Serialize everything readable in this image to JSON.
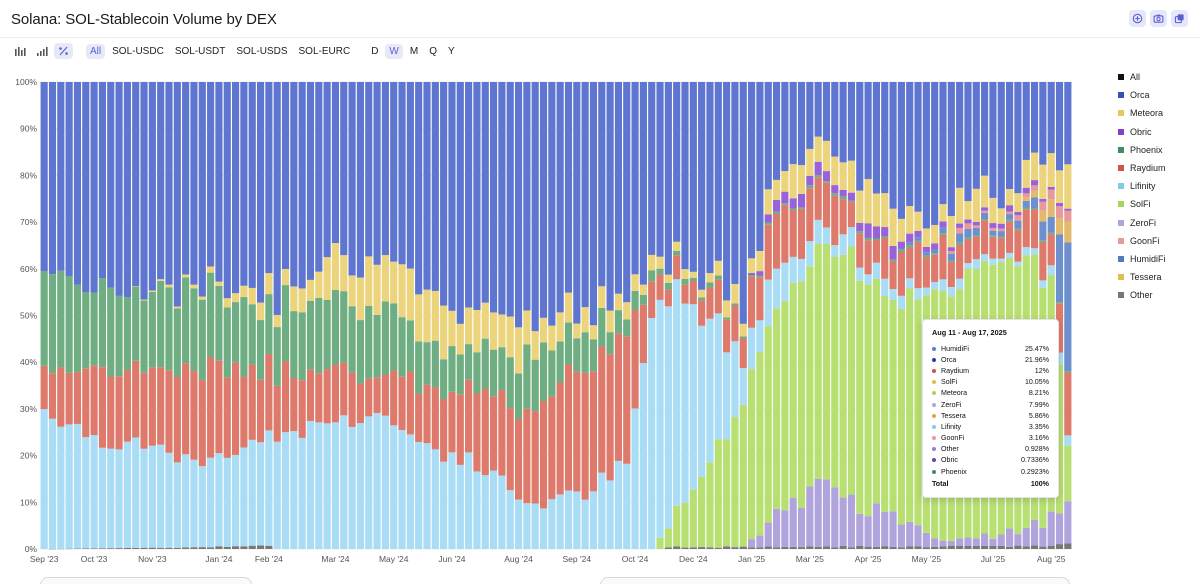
{
  "title": "Solana: SOL-Stablecoin Volume by DEX",
  "header_icons": [
    "add-icon",
    "camera-icon",
    "share-icon"
  ],
  "toolbar": {
    "chart_type_icons": [
      "bar-chart-icon",
      "signal-bars-icon",
      "percent-icon"
    ],
    "pairs": [
      "All",
      "SOL-USDC",
      "SOL-USDT",
      "SOL-USDS",
      "SOL-EURC"
    ],
    "active_pair": "All",
    "intervals": [
      "D",
      "W",
      "M",
      "Q",
      "Y"
    ],
    "active_interval": "W"
  },
  "legend": [
    {
      "label": "All",
      "color": "#111111"
    },
    {
      "label": "Orca",
      "color": "#3b4fb3"
    },
    {
      "label": "Meteora",
      "color": "#e6c75e"
    },
    {
      "label": "Obric",
      "color": "#8142c9"
    },
    {
      "label": "Phoenix",
      "color": "#3f8c5d"
    },
    {
      "label": "Raydium",
      "color": "#cf5349"
    },
    {
      "label": "Lifinity",
      "color": "#86c9ef"
    },
    {
      "label": "SolFi",
      "color": "#a8d65a"
    },
    {
      "label": "ZeroFi",
      "color": "#b1a4dd"
    },
    {
      "label": "GoonFi",
      "color": "#e89a9a"
    },
    {
      "label": "HumidiFi",
      "color": "#4f7ec0"
    },
    {
      "label": "Tessera",
      "color": "#dfbf4c"
    },
    {
      "label": "Other",
      "color": "#777777"
    }
  ],
  "tooltip": {
    "title": "Aug 11 - Aug 17, 2025",
    "rows": [
      {
        "name": "HumidiFi",
        "value": "25.47%",
        "color": "#5b7fc4"
      },
      {
        "name": "Orca",
        "value": "21.96%",
        "color": "#2d3f9e"
      },
      {
        "name": "Raydium",
        "value": "12%",
        "color": "#cf5349"
      },
      {
        "name": "SolFi",
        "value": "10.05%",
        "color": "#e0c04a"
      },
      {
        "name": "Meteora",
        "value": "8.21%",
        "color": "#a8d65a"
      },
      {
        "name": "ZeroFi",
        "value": "7.99%",
        "color": "#b1a4dd"
      },
      {
        "name": "Tessera",
        "value": "5.86%",
        "color": "#e3a947"
      },
      {
        "name": "Lifinity",
        "value": "3.35%",
        "color": "#86c9ef"
      },
      {
        "name": "GoonFi",
        "value": "3.16%",
        "color": "#e89a9a"
      },
      {
        "name": "Other",
        "value": "0.928%",
        "color": "#9c7fd0"
      },
      {
        "name": "Obric",
        "value": "0.7336%",
        "color": "#6b3fb8"
      },
      {
        "name": "Phoenix",
        "value": "0.2923%",
        "color": "#3f8c5d"
      }
    ],
    "total_label": "Total",
    "total_value": "100%"
  },
  "chart_data": {
    "type": "bar",
    "stacked": true,
    "normalized": true,
    "title": "Solana: SOL-Stablecoin Volume by DEX",
    "ylim": [
      0,
      100
    ],
    "y_ticks": [
      "0%",
      "10%",
      "20%",
      "30%",
      "40%",
      "50%",
      "60%",
      "70%",
      "80%",
      "90%",
      "100%"
    ],
    "x_tick_labels": [
      "Sep '23",
      "Oct '23",
      "Nov '23",
      "Jan '24",
      "Feb '24",
      "Mar '24",
      "May '24",
      "Jun '24",
      "Aug '24",
      "Sep '24",
      "Oct '24",
      "Dec '24",
      "Jan '25",
      "Mar '25",
      "Apr '25",
      "May '25",
      "Jul '25",
      "Aug '25"
    ],
    "x_tick_positions": [
      0,
      6,
      13,
      21,
      27,
      35,
      42,
      49,
      57,
      64,
      71,
      78,
      85,
      92,
      99,
      106,
      114,
      121
    ],
    "n_weeks": 124,
    "stack_order": [
      "Other",
      "ZeroFi",
      "SolFi",
      "Lifinity",
      "Raydium",
      "Phoenix",
      "HumidiFi",
      "Tessera",
      "GoonFi",
      "Obric",
      "Meteora",
      "Orca"
    ],
    "series_colors": {
      "Other": "#777777",
      "ZeroFi": "#b1a4dd",
      "SolFi": "#b8df72",
      "Lifinity": "#a9dcf5",
      "Raydium": "#de7a6c",
      "Phoenix": "#6fae82",
      "HumidiFi": "#6d8fce",
      "Tessera": "#e3b96a",
      "GoonFi": "#e89a9a",
      "Obric": "#9a62d8",
      "Meteora": "#ecd47c",
      "Orca": "#5e76cf"
    },
    "anchors": {
      "Other": [
        [
          0,
          0
        ],
        [
          27,
          0.6
        ],
        [
          28,
          0
        ],
        [
          74,
          0
        ],
        [
          75,
          0.4
        ],
        [
          120,
          0.6
        ],
        [
          123,
          0.9
        ]
      ],
      "ZeroFi": [
        [
          0,
          0
        ],
        [
          84,
          0
        ],
        [
          88,
          7
        ],
        [
          94,
          14
        ],
        [
          98,
          9
        ],
        [
          104,
          5
        ],
        [
          109,
          1
        ],
        [
          116,
          3
        ],
        [
          121,
          6
        ],
        [
          123,
          8
        ]
      ],
      "SolFi": [
        [
          0,
          0
        ],
        [
          73,
          0
        ],
        [
          75,
          5
        ],
        [
          78,
          12
        ],
        [
          82,
          25
        ],
        [
          86,
          40
        ],
        [
          90,
          48
        ],
        [
          94,
          50
        ],
        [
          98,
          52
        ],
        [
          101,
          45
        ],
        [
          103,
          47
        ],
        [
          106,
          52
        ],
        [
          110,
          54
        ],
        [
          114,
          60
        ],
        [
          118,
          57
        ],
        [
          121,
          51
        ],
        [
          123,
          10
        ]
      ],
      "Lifinity": [
        [
          0,
          30
        ],
        [
          6,
          24
        ],
        [
          12,
          21
        ],
        [
          20,
          18
        ],
        [
          27,
          24
        ],
        [
          34,
          27
        ],
        [
          40,
          29
        ],
        [
          46,
          22
        ],
        [
          52,
          18
        ],
        [
          58,
          10
        ],
        [
          64,
          11
        ],
        [
          70,
          18
        ],
        [
          73,
          50
        ],
        [
          76,
          48
        ],
        [
          80,
          30
        ],
        [
          84,
          9
        ],
        [
          88,
          8
        ],
        [
          92,
          4
        ],
        [
          96,
          4
        ],
        [
          100,
          3
        ],
        [
          104,
          2
        ],
        [
          110,
          2
        ],
        [
          115,
          1
        ],
        [
          121,
          2
        ],
        [
          123,
          3.35
        ]
      ],
      "Raydium": [
        [
          0,
          9
        ],
        [
          6,
          15
        ],
        [
          12,
          17
        ],
        [
          20,
          20
        ],
        [
          28,
          14
        ],
        [
          34,
          12
        ],
        [
          40,
          8
        ],
        [
          46,
          13
        ],
        [
          52,
          16
        ],
        [
          58,
          20
        ],
        [
          64,
          26
        ],
        [
          70,
          27
        ],
        [
          73,
          6
        ],
        [
          76,
          5
        ],
        [
          80,
          5
        ],
        [
          84,
          8
        ],
        [
          88,
          12
        ],
        [
          92,
          10
        ],
        [
          98,
          7
        ],
        [
          102,
          7
        ],
        [
          106,
          8
        ],
        [
          110,
          7
        ],
        [
          116,
          6
        ],
        [
          121,
          8
        ],
        [
          123,
          12
        ]
      ],
      "Phoenix": [
        [
          0,
          22
        ],
        [
          6,
          17
        ],
        [
          12,
          17
        ],
        [
          20,
          16
        ],
        [
          27,
          14
        ],
        [
          34,
          17
        ],
        [
          40,
          15
        ],
        [
          46,
          8
        ],
        [
          52,
          10
        ],
        [
          58,
          12
        ],
        [
          64,
          9
        ],
        [
          70,
          5
        ],
        [
          73,
          2
        ],
        [
          78,
          1
        ],
        [
          84,
          0.5
        ],
        [
          90,
          0.5
        ],
        [
          123,
          0.3
        ]
      ],
      "HumidiFi": [
        [
          0,
          0
        ],
        [
          102,
          0
        ],
        [
          104,
          0.5
        ],
        [
          106,
          1
        ],
        [
          110,
          1.5
        ],
        [
          114,
          1
        ],
        [
          118,
          2
        ],
        [
          121,
          4
        ],
        [
          123,
          25.47
        ]
      ],
      "Tessera": [
        [
          0,
          0
        ],
        [
          117,
          0
        ],
        [
          120,
          2
        ],
        [
          123,
          5.86
        ]
      ],
      "GoonFi": [
        [
          0,
          0
        ],
        [
          108,
          0
        ],
        [
          110,
          1
        ],
        [
          114,
          0.5
        ],
        [
          118,
          1
        ],
        [
          121,
          2
        ],
        [
          123,
          3.16
        ]
      ],
      "Obric": [
        [
          0,
          0
        ],
        [
          84,
          0
        ],
        [
          88,
          2
        ],
        [
          92,
          2.5
        ],
        [
          96,
          2
        ],
        [
          100,
          3
        ],
        [
          104,
          1.5
        ],
        [
          110,
          1
        ],
        [
          116,
          1
        ],
        [
          123,
          0.73
        ]
      ],
      "Meteora": [
        [
          0,
          0
        ],
        [
          10,
          0
        ],
        [
          20,
          1
        ],
        [
          28,
          4
        ],
        [
          34,
          8
        ],
        [
          40,
          9
        ],
        [
          46,
          10
        ],
        [
          52,
          8
        ],
        [
          58,
          9
        ],
        [
          64,
          4
        ],
        [
          70,
          4
        ],
        [
          74,
          2
        ],
        [
          78,
          2
        ],
        [
          84,
          4
        ],
        [
          88,
          6
        ],
        [
          94,
          7
        ],
        [
          98,
          8
        ],
        [
          102,
          6
        ],
        [
          106,
          4
        ],
        [
          110,
          6
        ],
        [
          116,
          5
        ],
        [
          121,
          6
        ],
        [
          123,
          8.21
        ]
      ]
    },
    "noise_amplitude": 2.2
  }
}
